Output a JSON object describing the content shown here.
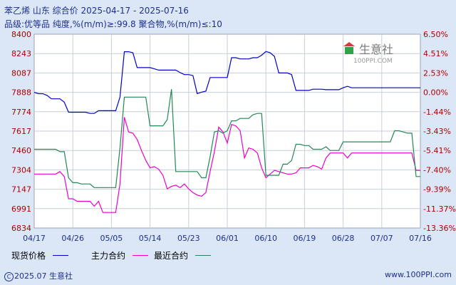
{
  "header": {
    "title_text": "苯乙烯 山东 综合价 2025-04-17 - 2025-07-16",
    "spec_text": "品级:优等品 纯度,%(m/m)≥:99.8 聚合物,%(m/m)≤:10"
  },
  "footer": {
    "copyright_text": "2025.07 生意社",
    "site_text": "www.100PPI.com"
  },
  "logo": {
    "name": "生意社",
    "sub": "100PPI.COM"
  },
  "colors": {
    "spot": "#0000cc",
    "main": "#ee00cc",
    "recent": "#228855",
    "text": "#1f2f8f",
    "left_axis": "#b00000",
    "right_axis": "#b00000"
  },
  "chart_data": {
    "type": "line",
    "x_labels": [
      "04/17",
      "04/26",
      "05/05",
      "05/14",
      "05/23",
      "06/01",
      "06/10",
      "06/19",
      "06/28",
      "07/07",
      "07/16"
    ],
    "y_left_ticks": [
      8400,
      8243,
      8087,
      7888,
      7774,
      7617,
      7460,
      7304,
      7147,
      6991,
      6834
    ],
    "y_right_ticks": [
      "6.50%",
      "4.51%",
      "2.53%",
      "0.00%",
      "-1.44%",
      "-3.43%",
      "-5.41%",
      "-7.40%",
      "-9.39%",
      "-11.37%",
      "-13.36%"
    ],
    "ylim": [
      6834,
      8400
    ],
    "legend_position": "bottom",
    "series": [
      {
        "name": "现货价格",
        "color_key": "spot",
        "x": [
          0,
          1,
          2,
          3,
          4,
          5,
          6,
          7,
          8,
          9,
          10,
          11,
          12,
          13,
          14,
          15,
          16,
          17,
          18,
          19,
          20,
          21,
          22,
          23,
          24,
          25,
          26,
          27,
          28,
          29,
          30,
          31,
          32,
          33,
          34,
          35,
          36,
          37,
          38,
          39,
          40,
          41,
          42,
          43,
          44,
          45,
          46,
          47,
          48,
          49,
          50,
          51,
          52,
          53,
          54,
          55,
          56,
          57,
          58,
          59,
          60,
          61,
          62,
          63,
          64,
          65,
          66,
          67,
          68,
          69,
          70,
          71,
          72,
          73,
          74,
          75,
          76,
          77,
          78,
          79,
          80,
          81,
          82,
          83,
          84,
          85,
          86,
          87,
          88,
          89,
          90
        ],
        "values": [
          7888,
          7880,
          7880,
          7870,
          7850,
          7850,
          7850,
          7830,
          7770,
          7770,
          7770,
          7770,
          7770,
          7760,
          7760,
          7780,
          7780,
          7780,
          7780,
          7780,
          7860,
          8258,
          8258,
          8250,
          8130,
          8130,
          8130,
          8130,
          8120,
          8110,
          8110,
          8110,
          8110,
          8110,
          8090,
          8070,
          8070,
          8060,
          7880,
          7890,
          7900,
          8040,
          8040,
          8040,
          8040,
          8040,
          8210,
          8210,
          8200,
          8200,
          8200,
          8210,
          8210,
          8230,
          8260,
          8250,
          8220,
          8087,
          8087,
          8087,
          8070,
          7908,
          7908,
          7908,
          7908,
          7920,
          7920,
          7920,
          7915,
          7915,
          7915,
          7915,
          7935,
          7950,
          7935,
          7935,
          7935,
          7935,
          7935,
          7935,
          7935,
          7935,
          7935,
          7935,
          7935,
          7935,
          7935,
          7935,
          7935,
          7935,
          7935
        ]
      },
      {
        "name": "主力合约",
        "color_key": "main",
        "x": [
          0,
          1,
          2,
          3,
          4,
          5,
          6,
          7,
          8,
          9,
          10,
          11,
          12,
          13,
          14,
          15,
          16,
          17,
          18,
          19,
          20,
          21,
          22,
          23,
          24,
          25,
          26,
          27,
          28,
          29,
          30,
          31,
          32,
          33,
          34,
          35,
          36,
          37,
          38,
          39,
          40,
          41,
          42,
          43,
          44,
          45,
          46,
          47,
          48,
          49,
          50,
          51,
          52,
          53,
          54,
          55,
          56,
          57,
          58,
          59,
          60,
          61,
          62,
          63,
          64,
          65,
          66,
          67,
          68,
          69,
          70,
          71,
          72,
          73,
          74,
          75,
          76,
          77,
          78,
          79,
          80,
          81,
          82,
          83,
          84,
          85,
          86,
          87,
          88,
          89,
          90
        ],
        "values": [
          7270,
          7270,
          7270,
          7270,
          7270,
          7270,
          7290,
          7250,
          7070,
          7070,
          7050,
          7050,
          7050,
          7050,
          7010,
          7050,
          6960,
          6960,
          6960,
          6960,
          7190,
          7730,
          7610,
          7600,
          7550,
          7460,
          7380,
          7320,
          7330,
          7310,
          7260,
          7150,
          7170,
          7180,
          7160,
          7190,
          7150,
          7120,
          7100,
          7090,
          7120,
          7290,
          7450,
          7650,
          7610,
          7520,
          7670,
          7660,
          7620,
          7400,
          7480,
          7470,
          7440,
          7320,
          7240,
          7270,
          7300,
          7290,
          7280,
          7270,
          7270,
          7280,
          7320,
          7320,
          7320,
          7340,
          7330,
          7310,
          7400,
          7440,
          7440,
          7440,
          7440,
          7400,
          7440,
          7440,
          7440,
          7440,
          7440,
          7440,
          7440,
          7440,
          7440,
          7440,
          7440,
          7440,
          7440,
          7440,
          7440,
          7300,
          7300
        ]
      },
      {
        "name": "最近合约",
        "color_key": "recent",
        "x": [
          0,
          1,
          2,
          3,
          4,
          5,
          6,
          7,
          8,
          9,
          10,
          11,
          12,
          13,
          14,
          15,
          16,
          17,
          18,
          19,
          20,
          21,
          22,
          23,
          24,
          25,
          26,
          27,
          28,
          29,
          30,
          31,
          32,
          33,
          34,
          35,
          36,
          37,
          38,
          39,
          40,
          41,
          42,
          43,
          44,
          45,
          46,
          47,
          48,
          49,
          50,
          51,
          52,
          53,
          54,
          55,
          56,
          57,
          58,
          59,
          60,
          61,
          62,
          63,
          64,
          65,
          66,
          67,
          68,
          69,
          70,
          71,
          72,
          73,
          74,
          75,
          76,
          77,
          78,
          79,
          80,
          81,
          82,
          83,
          84,
          85,
          86,
          87,
          88,
          89,
          90
        ],
        "values": [
          7470,
          7470,
          7470,
          7470,
          7470,
          7470,
          7450,
          7450,
          7240,
          7200,
          7200,
          7190,
          7190,
          7190,
          7160,
          7160,
          7160,
          7160,
          7160,
          7160,
          7480,
          7860,
          7860,
          7860,
          7860,
          7860,
          7860,
          7660,
          7660,
          7660,
          7660,
          7710,
          7920,
          7290,
          7290,
          7290,
          7290,
          7290,
          7290,
          7240,
          7240,
          7410,
          7610,
          7620,
          7600,
          7620,
          7700,
          7700,
          7720,
          7720,
          7720,
          7750,
          7760,
          7760,
          7260,
          7260,
          7260,
          7260,
          7350,
          7350,
          7380,
          7510,
          7510,
          7500,
          7500,
          7470,
          7470,
          7470,
          7490,
          7460,
          7460,
          7460,
          7530,
          7530,
          7530,
          7530,
          7530,
          7530,
          7530,
          7530,
          7530,
          7530,
          7530,
          7530,
          7620,
          7620,
          7610,
          7600,
          7600,
          7250,
          7250
        ]
      }
    ]
  }
}
